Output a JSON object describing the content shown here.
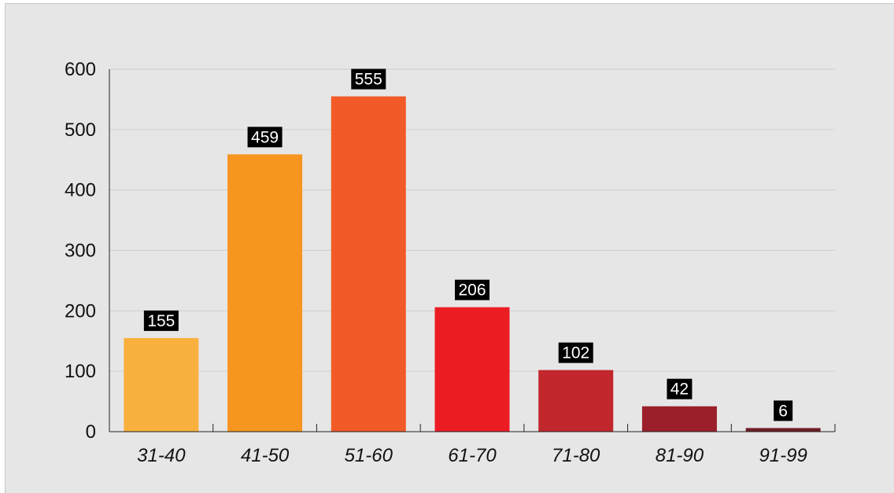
{
  "chart_data": {
    "type": "bar",
    "categories": [
      "31-40",
      "41-50",
      "51-60",
      "61-70",
      "71-80",
      "81-90",
      "91-99"
    ],
    "values": [
      155,
      459,
      555,
      206,
      102,
      42,
      6
    ],
    "data_labels": [
      "155",
      "459",
      "555",
      "206",
      "102",
      "42",
      "6"
    ],
    "colors": [
      "#f9b03e",
      "#f6961f",
      "#f25a27",
      "#ec1c24",
      "#c1272d",
      "#9b1f2b",
      "#6f1d26"
    ],
    "title": "",
    "xlabel": "",
    "ylabel": "",
    "ylim": [
      0,
      600
    ],
    "yticks": [
      0,
      100,
      200,
      300,
      400,
      500,
      600
    ],
    "ytick_labels": [
      "0",
      "100",
      "200",
      "300",
      "400",
      "500",
      "600"
    ],
    "grid": true,
    "legend": "none",
    "background": "#e6e6e6",
    "label_box_color": "#000000"
  }
}
